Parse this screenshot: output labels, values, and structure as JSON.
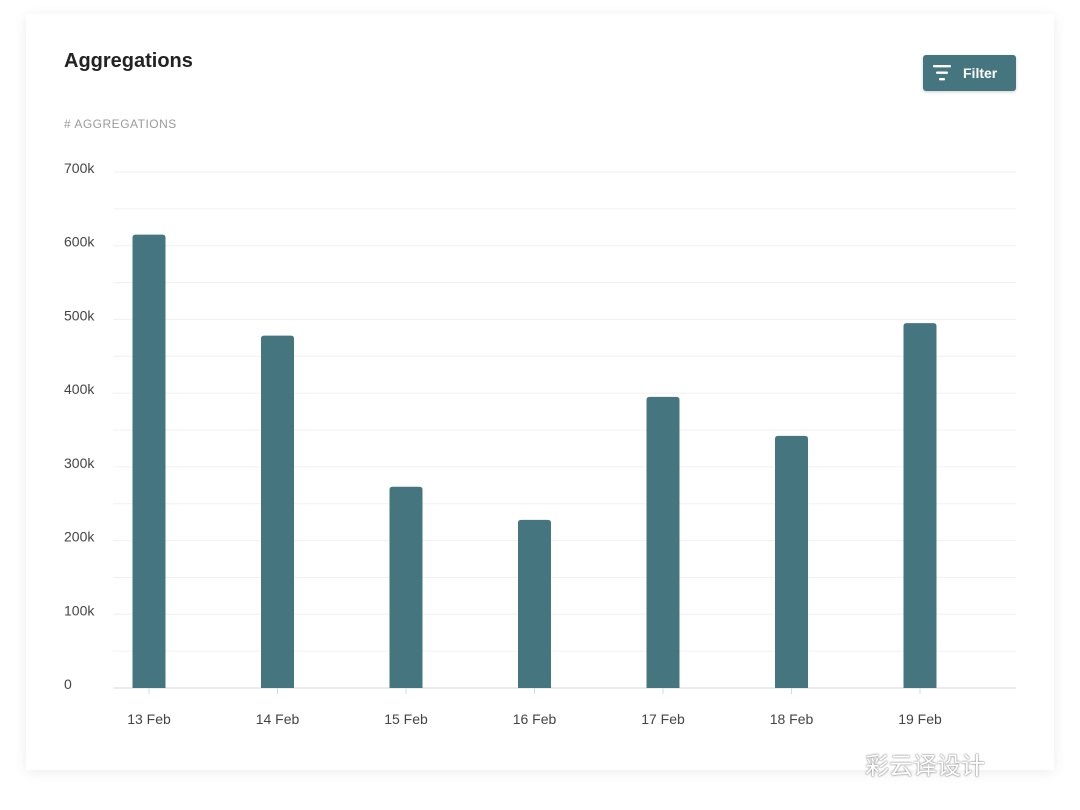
{
  "header": {
    "title": "Aggregations",
    "filter_label": "Filter",
    "filter_icon": "filter-icon"
  },
  "watermark": "彩云译设计",
  "colors": {
    "bar": "#457680",
    "button": "#457680"
  },
  "chart_data": {
    "type": "bar",
    "ylabel": "# AGGREGATIONS",
    "categories": [
      "13 Feb",
      "14 Feb",
      "15 Feb",
      "16 Feb",
      "17 Feb",
      "18 Feb",
      "19 Feb"
    ],
    "values": [
      615000,
      478000,
      273000,
      228000,
      395000,
      342000,
      495000
    ],
    "ylim": [
      0,
      700000
    ],
    "yticks": [
      0,
      100000,
      200000,
      300000,
      400000,
      500000,
      600000,
      700000
    ],
    "ytick_labels": [
      "0",
      "100k",
      "200k",
      "300k",
      "400k",
      "500k",
      "600k",
      "700k"
    ],
    "grid": true
  }
}
